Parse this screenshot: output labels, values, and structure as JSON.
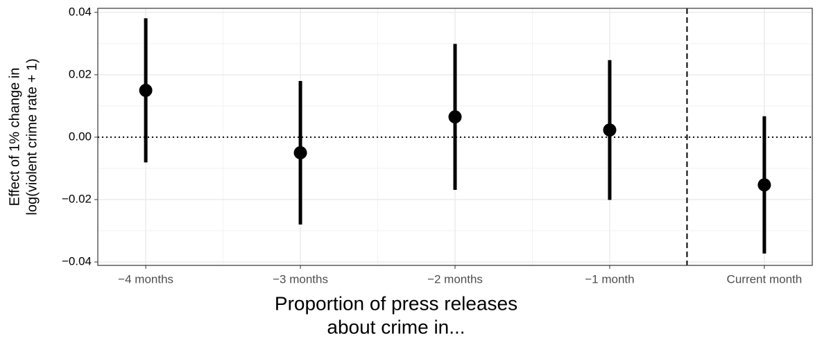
{
  "chart_data": {
    "type": "errorbar",
    "x_label": [
      "Proportion of press releases",
      "about crime in..."
    ],
    "y_label": [
      "Effect of 1% change in",
      "log(violent crime rate + 1)"
    ],
    "categories": [
      "−4 months",
      "−3 months",
      "−2 months",
      "−1 month",
      "Current month"
    ],
    "values": [
      0.015,
      -0.005,
      0.0065,
      0.0023,
      -0.0153
    ],
    "errors": [
      0.0231,
      0.023,
      0.0234,
      0.0224,
      0.022
    ],
    "color": "#000000",
    "ylim": [
      -0.0411,
      0.0413
    ],
    "yticks": [
      {
        "value": -0.04,
        "label": "−0.04"
      },
      {
        "value": -0.02,
        "label": "−0.02"
      },
      {
        "value": 0,
        "label": "0.00"
      },
      {
        "value": 0.02,
        "label": "0.02"
      },
      {
        "value": 0.04,
        "label": "0.04"
      }
    ],
    "minor_yticks": [
      -0.03,
      -0.01,
      0.01,
      0.03
    ],
    "hline": 0,
    "grid": true
  }
}
